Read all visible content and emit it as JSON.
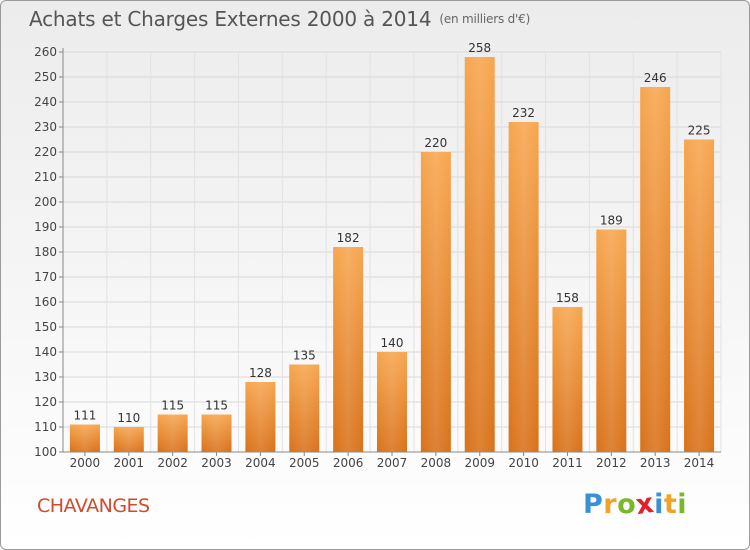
{
  "title": "Achats et Charges Externes 2000 à 2014",
  "subtitle": "(en milliers d'€)",
  "commune": "CHAVANGES",
  "logo": {
    "letters": [
      "P",
      "r",
      "o",
      "x",
      "i",
      "t",
      "i"
    ],
    "colors": [
      "#3a8fd6",
      "#f2a225",
      "#78b82a",
      "#e2202a",
      "#3a8fd6",
      "#f2a225",
      "#78b82a"
    ]
  },
  "chart_data": {
    "type": "bar",
    "categories": [
      "2000",
      "2001",
      "2002",
      "2003",
      "2004",
      "2005",
      "2006",
      "2007",
      "2008",
      "2009",
      "2010",
      "2011",
      "2012",
      "2013",
      "2014"
    ],
    "values": [
      111,
      110,
      115,
      115,
      128,
      135,
      182,
      140,
      220,
      258,
      232,
      158,
      189,
      246,
      225
    ],
    "ylim": [
      100,
      260
    ],
    "yticks": [
      100,
      110,
      120,
      130,
      140,
      150,
      160,
      170,
      180,
      190,
      200,
      210,
      220,
      230,
      240,
      250,
      260
    ],
    "grid": true,
    "bar_color": "#f0922e",
    "xlabel": "",
    "ylabel": ""
  }
}
